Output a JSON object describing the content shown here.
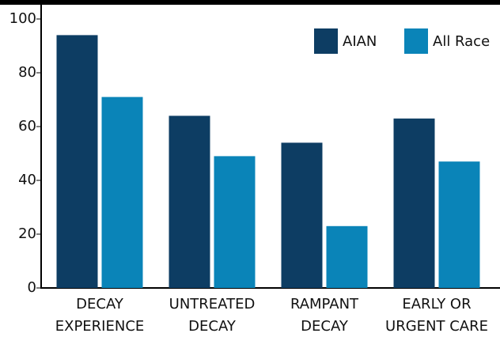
{
  "chart_data": {
    "type": "bar",
    "categories": [
      [
        "DECAY",
        "EXPERIENCE"
      ],
      [
        "UNTREATED",
        "DECAY"
      ],
      [
        "RAMPANT",
        "DECAY"
      ],
      [
        "EARLY OR",
        "URGENT CARE"
      ]
    ],
    "series": [
      {
        "name": "AIAN",
        "color": "#0d3d63",
        "values": [
          94,
          64,
          54,
          63
        ]
      },
      {
        "name": "All Race",
        "color": "#0a84b8",
        "values": [
          71,
          49,
          23,
          47
        ]
      }
    ],
    "ylim": [
      0,
      100
    ],
    "yticks": [
      0,
      20,
      40,
      60,
      80,
      100
    ],
    "legend": "top-right"
  }
}
